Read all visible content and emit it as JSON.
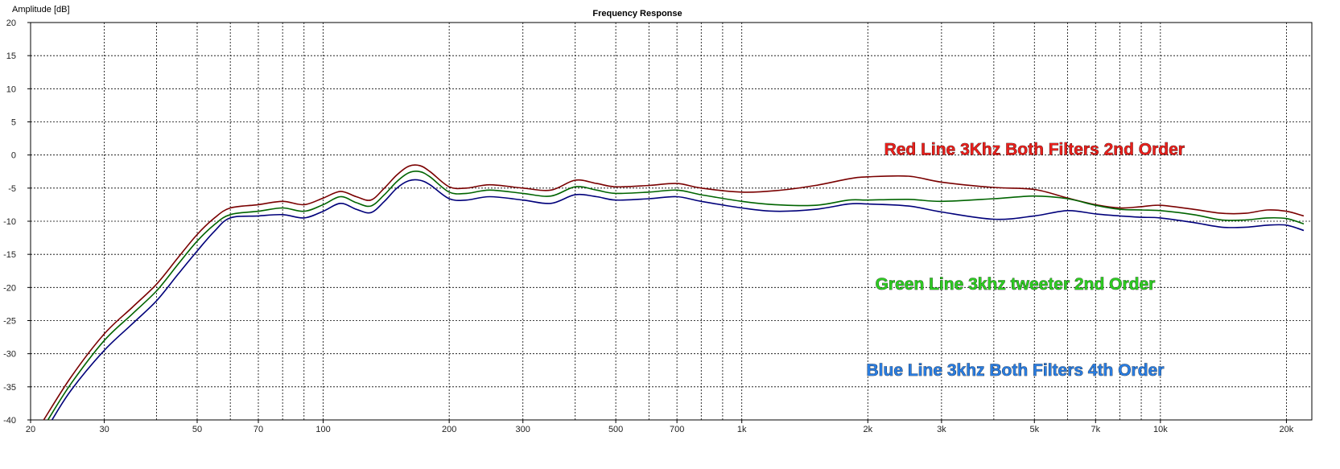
{
  "chart_data": {
    "type": "line",
    "title": "Frequency Response",
    "ylabel": "Amplitude [dB]",
    "xlabel": "",
    "xscale": "log",
    "xlim": [
      20,
      23000
    ],
    "ylim": [
      -40,
      20
    ],
    "grid": true,
    "y_ticks": [
      "20",
      "15",
      "10",
      "5",
      "0",
      "-5",
      "-10",
      "-15",
      "-20",
      "-25",
      "-30",
      "-35",
      "-40"
    ],
    "x_ticks": [
      {
        "value": 20,
        "label": "20"
      },
      {
        "value": 30,
        "label": "30"
      },
      {
        "value": 50,
        "label": "50"
      },
      {
        "value": 70,
        "label": "70"
      },
      {
        "value": 100,
        "label": "100"
      },
      {
        "value": 200,
        "label": "200"
      },
      {
        "value": 300,
        "label": "300"
      },
      {
        "value": 500,
        "label": "500"
      },
      {
        "value": 700,
        "label": "700"
      },
      {
        "value": 1000,
        "label": "1k"
      },
      {
        "value": 2000,
        "label": "2k"
      },
      {
        "value": 3000,
        "label": "3k"
      },
      {
        "value": 5000,
        "label": "5k"
      },
      {
        "value": 7000,
        "label": "7k"
      },
      {
        "value": 10000,
        "label": "10k"
      },
      {
        "value": 20000,
        "label": "20k"
      }
    ],
    "series": [
      {
        "color": "#7a0000",
        "points": [
          [
            21.5,
            -40
          ],
          [
            25,
            -33.5
          ],
          [
            30,
            -27
          ],
          [
            35,
            -23
          ],
          [
            40,
            -19.5
          ],
          [
            45,
            -15.5
          ],
          [
            50,
            -12
          ],
          [
            55,
            -9.5
          ],
          [
            60,
            -8
          ],
          [
            70,
            -7.5
          ],
          [
            80,
            -7
          ],
          [
            90,
            -7.5
          ],
          [
            100,
            -6.5
          ],
          [
            110,
            -5.5
          ],
          [
            120,
            -6.3
          ],
          [
            130,
            -6.8
          ],
          [
            140,
            -5
          ],
          [
            150,
            -3
          ],
          [
            160,
            -1.7
          ],
          [
            170,
            -1.6
          ],
          [
            180,
            -2.5
          ],
          [
            200,
            -4.8
          ],
          [
            220,
            -5
          ],
          [
            250,
            -4.5
          ],
          [
            300,
            -5
          ],
          [
            350,
            -5.3
          ],
          [
            400,
            -3.8
          ],
          [
            450,
            -4.3
          ],
          [
            500,
            -4.8
          ],
          [
            600,
            -4.6
          ],
          [
            700,
            -4.3
          ],
          [
            800,
            -5
          ],
          [
            1000,
            -5.6
          ],
          [
            1200,
            -5.4
          ],
          [
            1500,
            -4.6
          ],
          [
            1800,
            -3.6
          ],
          [
            2000,
            -3.3
          ],
          [
            2500,
            -3.2
          ],
          [
            3000,
            -4.1
          ],
          [
            4000,
            -4.9
          ],
          [
            5000,
            -5.2
          ],
          [
            6000,
            -6.5
          ],
          [
            7000,
            -7.5
          ],
          [
            8000,
            -8
          ],
          [
            9000,
            -7.8
          ],
          [
            10000,
            -7.6
          ],
          [
            12000,
            -8.2
          ],
          [
            14000,
            -8.8
          ],
          [
            16000,
            -8.8
          ],
          [
            18000,
            -8.3
          ],
          [
            20000,
            -8.5
          ],
          [
            22000,
            -9.2
          ]
        ]
      },
      {
        "color": "#006400",
        "points": [
          [
            22,
            -40
          ],
          [
            25,
            -34.5
          ],
          [
            30,
            -28
          ],
          [
            35,
            -24
          ],
          [
            40,
            -20.5
          ],
          [
            45,
            -16.5
          ],
          [
            50,
            -13
          ],
          [
            55,
            -10.5
          ],
          [
            60,
            -9
          ],
          [
            70,
            -8.5
          ],
          [
            80,
            -8
          ],
          [
            90,
            -8.5
          ],
          [
            100,
            -7.5
          ],
          [
            110,
            -6.3
          ],
          [
            120,
            -7.2
          ],
          [
            130,
            -7.7
          ],
          [
            140,
            -6
          ],
          [
            150,
            -4
          ],
          [
            160,
            -2.7
          ],
          [
            170,
            -2.5
          ],
          [
            180,
            -3.3
          ],
          [
            200,
            -5.6
          ],
          [
            220,
            -5.8
          ],
          [
            250,
            -5.3
          ],
          [
            300,
            -5.8
          ],
          [
            350,
            -6.2
          ],
          [
            400,
            -4.8
          ],
          [
            450,
            -5.3
          ],
          [
            500,
            -5.8
          ],
          [
            600,
            -5.6
          ],
          [
            700,
            -5.3
          ],
          [
            800,
            -6
          ],
          [
            1000,
            -7
          ],
          [
            1200,
            -7.5
          ],
          [
            1500,
            -7.6
          ],
          [
            1800,
            -6.8
          ],
          [
            2000,
            -6.8
          ],
          [
            2500,
            -6.7
          ],
          [
            3000,
            -7
          ],
          [
            4000,
            -6.6
          ],
          [
            5000,
            -6.2
          ],
          [
            6000,
            -6.6
          ],
          [
            7000,
            -7.6
          ],
          [
            8000,
            -8.2
          ],
          [
            9000,
            -8.3
          ],
          [
            10000,
            -8.4
          ],
          [
            12000,
            -9
          ],
          [
            14000,
            -9.8
          ],
          [
            16000,
            -9.8
          ],
          [
            18000,
            -9.5
          ],
          [
            20000,
            -9.6
          ],
          [
            22000,
            -10.4
          ]
        ]
      },
      {
        "color": "#00007a",
        "points": [
          [
            22.5,
            -40
          ],
          [
            25,
            -35.5
          ],
          [
            30,
            -29.5
          ],
          [
            35,
            -25.5
          ],
          [
            40,
            -22
          ],
          [
            45,
            -18
          ],
          [
            50,
            -14.5
          ],
          [
            55,
            -11.5
          ],
          [
            60,
            -9.5
          ],
          [
            70,
            -9.2
          ],
          [
            80,
            -9
          ],
          [
            90,
            -9.5
          ],
          [
            100,
            -8.5
          ],
          [
            110,
            -7.3
          ],
          [
            120,
            -8.2
          ],
          [
            130,
            -8.7
          ],
          [
            140,
            -7
          ],
          [
            150,
            -5
          ],
          [
            160,
            -3.9
          ],
          [
            170,
            -3.8
          ],
          [
            180,
            -4.5
          ],
          [
            200,
            -6.6
          ],
          [
            220,
            -6.8
          ],
          [
            250,
            -6.3
          ],
          [
            300,
            -6.8
          ],
          [
            350,
            -7.3
          ],
          [
            400,
            -6
          ],
          [
            450,
            -6.3
          ],
          [
            500,
            -6.8
          ],
          [
            600,
            -6.6
          ],
          [
            700,
            -6.3
          ],
          [
            800,
            -7
          ],
          [
            1000,
            -8
          ],
          [
            1200,
            -8.5
          ],
          [
            1500,
            -8.2
          ],
          [
            1800,
            -7.4
          ],
          [
            2000,
            -7.4
          ],
          [
            2500,
            -7.7
          ],
          [
            3000,
            -8.6
          ],
          [
            4000,
            -9.7
          ],
          [
            5000,
            -9.2
          ],
          [
            6000,
            -8.4
          ],
          [
            7000,
            -8.9
          ],
          [
            8000,
            -9.2
          ],
          [
            9000,
            -9.4
          ],
          [
            10000,
            -9.5
          ],
          [
            12000,
            -10.2
          ],
          [
            14000,
            -10.9
          ],
          [
            16000,
            -10.9
          ],
          [
            18000,
            -10.6
          ],
          [
            20000,
            -10.6
          ],
          [
            22000,
            -11.4
          ]
        ]
      }
    ],
    "annotations": [
      {
        "text": "Red Line 3Khz Both Filters 2nd Order",
        "color": "#e8201c",
        "x": 5000,
        "y": 0
      },
      {
        "text": "Green Line 3khz tweeter 2nd Order",
        "color": "#2ecc22",
        "x": 4500,
        "y": -20.3
      },
      {
        "text": "Blue Line 3khz Both Filters 4th Order",
        "color": "#2a7de1",
        "x": 4500,
        "y": -33.3
      }
    ]
  }
}
